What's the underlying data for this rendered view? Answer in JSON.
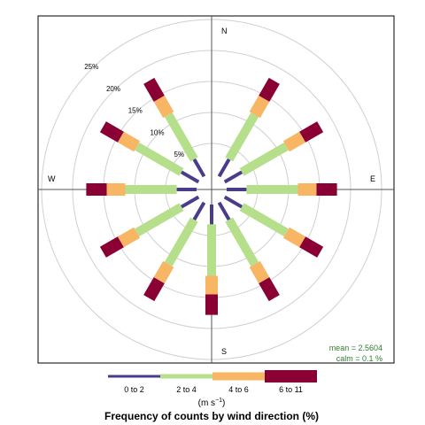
{
  "chart_data": {
    "type": "windrose",
    "title": "Frequency of counts by wind direction (%)",
    "unit_label": {
      "base": "(m s",
      "exp": "−1",
      "close": ")"
    },
    "compass": {
      "N": "N",
      "E": "E",
      "S": "S",
      "W": "W"
    },
    "radial_axis": {
      "max": 25,
      "ticks": [
        5,
        10,
        15,
        20,
        25
      ],
      "tick_labels": [
        "5%",
        "10%",
        "15%",
        "20%",
        "25%"
      ]
    },
    "grid": true,
    "legend_position": "bottom",
    "bins": [
      {
        "label": "0 to 2",
        "color": "#483d8b"
      },
      {
        "label": "2 to 4",
        "color": "#b5df8b"
      },
      {
        "label": "4 to 6",
        "color": "#f8b563"
      },
      {
        "label": "6 to 11",
        "color": "#8b0034"
      }
    ],
    "directions": [
      {
        "angle": 0,
        "cumulative": [
          0,
          0,
          0,
          0
        ]
      },
      {
        "angle": 30,
        "cumulative": [
          3.2,
          11.5,
          14.5,
          17.8
        ]
      },
      {
        "angle": 60,
        "cumulative": [
          3.2,
          11.5,
          14.5,
          17.8
        ]
      },
      {
        "angle": 90,
        "cumulative": [
          3.2,
          11.5,
          14.5,
          17.8
        ]
      },
      {
        "angle": 120,
        "cumulative": [
          3.2,
          11.5,
          14.5,
          17.8
        ]
      },
      {
        "angle": 150,
        "cumulative": [
          3.2,
          11.5,
          14.5,
          17.8
        ]
      },
      {
        "angle": 180,
        "cumulative": [
          3.2,
          11.5,
          14.5,
          17.8
        ]
      },
      {
        "angle": 210,
        "cumulative": [
          3.2,
          11.5,
          14.5,
          17.8
        ]
      },
      {
        "angle": 240,
        "cumulative": [
          3.2,
          11.5,
          14.5,
          17.8
        ]
      },
      {
        "angle": 270,
        "cumulative": [
          3.2,
          11.5,
          14.5,
          17.8
        ]
      },
      {
        "angle": 300,
        "cumulative": [
          3.2,
          11.5,
          14.5,
          17.8
        ]
      },
      {
        "angle": 330,
        "cumulative": [
          3.2,
          11.5,
          14.5,
          17.8
        ]
      }
    ],
    "stats": {
      "mean": "mean  =  2.5604",
      "calm": "calm  =  0.1 %"
    }
  },
  "colors": {
    "stats_text": "#2e7d32",
    "grid": "#d0d0d0",
    "axis": "#555555"
  }
}
